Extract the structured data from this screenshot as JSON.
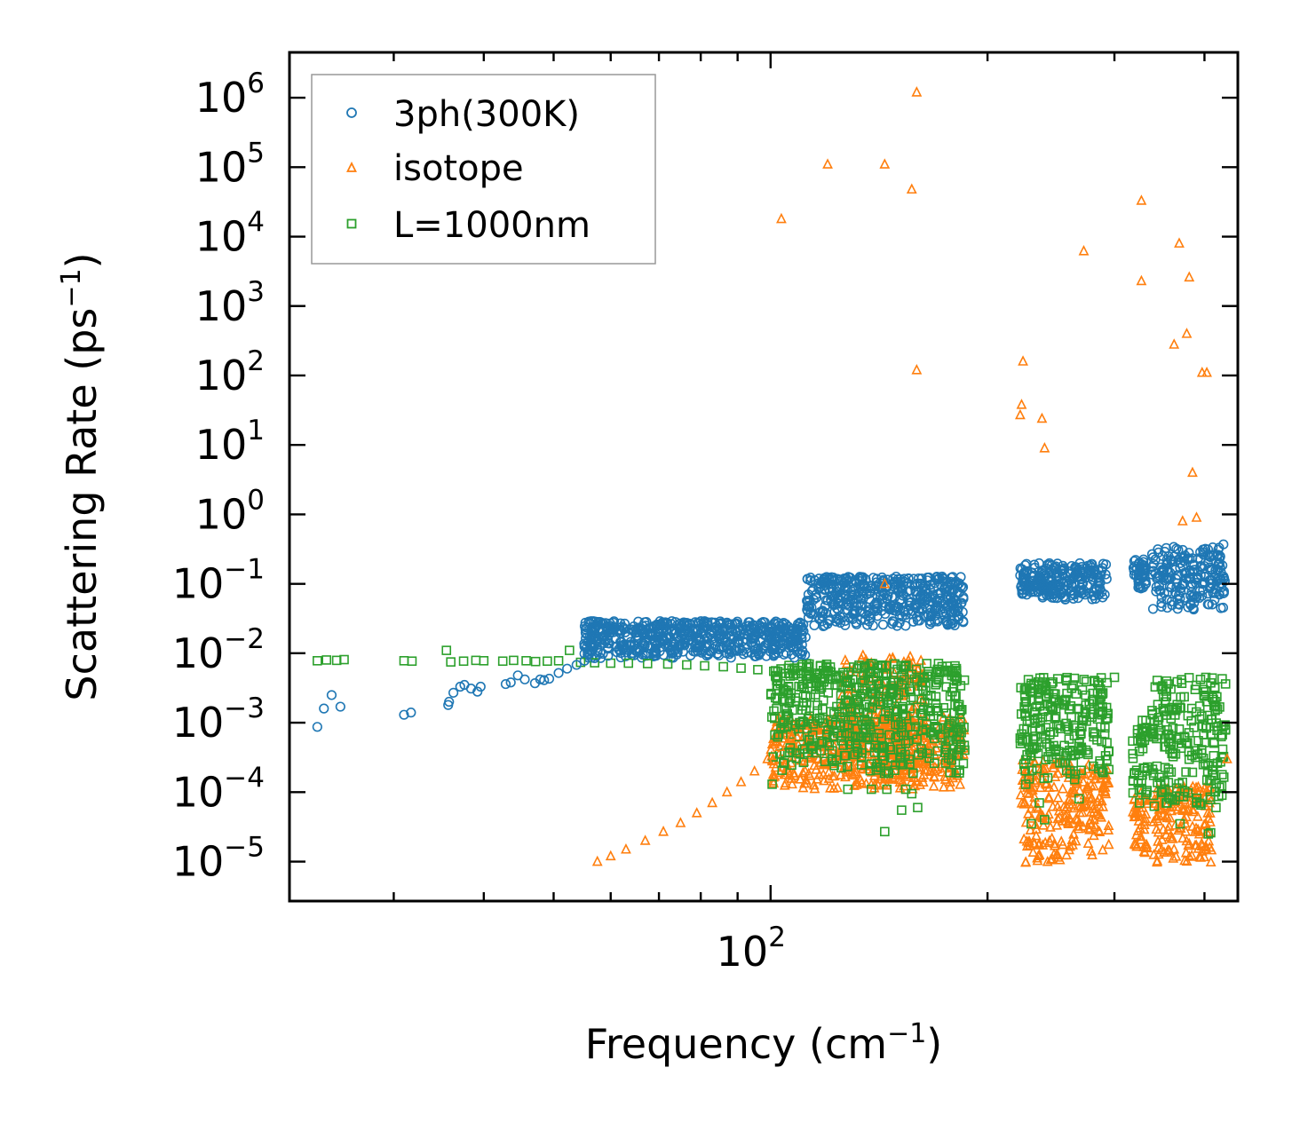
{
  "chart_data": {
    "type": "scatter",
    "xscale": "log",
    "yscale": "log",
    "xlabel": "Frequency (cm",
    "xlabel_sup": "−1",
    "xlabel_end": ")",
    "ylabel": "Scattering Rate (ps",
    "ylabel_sup": "−1",
    "ylabel_end": ")",
    "xlim": [
      21.5,
      445
    ],
    "ylim": [
      2.7e-06,
      4500000
    ],
    "xticks": [
      {
        "value": 100,
        "base": "10",
        "exp": "2"
      }
    ],
    "yticks": [
      {
        "value": 1e-05,
        "base": "10",
        "exp": "−5"
      },
      {
        "value": 0.0001,
        "base": "10",
        "exp": "−4"
      },
      {
        "value": 0.001,
        "base": "10",
        "exp": "−3"
      },
      {
        "value": 0.01,
        "base": "10",
        "exp": "−2"
      },
      {
        "value": 0.1,
        "base": "10",
        "exp": "−1"
      },
      {
        "value": 1,
        "base": "10",
        "exp": "0"
      },
      {
        "value": 10,
        "base": "10",
        "exp": "1"
      },
      {
        "value": 100,
        "base": "10",
        "exp": "2"
      },
      {
        "value": 1000,
        "base": "10",
        "exp": "3"
      },
      {
        "value": 10000,
        "base": "10",
        "exp": "4"
      },
      {
        "value": 100000,
        "base": "10",
        "exp": "5"
      },
      {
        "value": 1000000,
        "base": "10",
        "exp": "6"
      }
    ],
    "legend_position": "top-left",
    "series": [
      {
        "name": "3ph(300K)",
        "marker": "circle",
        "color": "#1f77b4",
        "points": [
          [
            23.5,
            0.00087
          ],
          [
            24.0,
            0.0016
          ],
          [
            24.6,
            0.0025
          ],
          [
            25.3,
            0.0017
          ],
          [
            31.0,
            0.0013
          ],
          [
            31.7,
            0.0014
          ],
          [
            35.7,
            0.0018
          ],
          [
            35.8,
            0.002
          ],
          [
            36.3,
            0.0027
          ],
          [
            37.1,
            0.0033
          ],
          [
            37.6,
            0.0035
          ],
          [
            38.4,
            0.0031
          ],
          [
            39.2,
            0.0028
          ],
          [
            39.6,
            0.0033
          ],
          [
            42.9,
            0.0036
          ],
          [
            43.6,
            0.0038
          ],
          [
            44.6,
            0.0048
          ],
          [
            45.6,
            0.0042
          ],
          [
            47.1,
            0.0037
          ],
          [
            47.9,
            0.0042
          ],
          [
            48.5,
            0.0041
          ],
          [
            49.3,
            0.0043
          ],
          [
            50.8,
            0.0052
          ],
          [
            52.2,
            0.006
          ],
          [
            53.8,
            0.0068
          ],
          [
            55.2,
            0.0078
          ],
          [
            57.0,
            0.0085
          ],
          [
            59.5,
            0.0092
          ],
          [
            62.0,
            0.0101
          ],
          [
            65.0,
            0.0108
          ],
          [
            68.0,
            0.0118
          ],
          [
            72.0,
            0.013
          ],
          [
            76.0,
            0.0145
          ],
          [
            80.0,
            0.0158
          ],
          [
            85.0,
            0.0178
          ],
          [
            90.0,
            0.0198
          ],
          [
            95.0,
            0.022
          ],
          [
            100.0,
            0.0245
          ],
          [
            105.0,
            0.0262
          ],
          [
            110.0,
            0.0268
          ],
          [
            115.0,
            0.0252
          ],
          [
            120.0,
            0.0265
          ],
          [
            125.0,
            0.0275
          ],
          [
            130.0,
            0.031
          ],
          [
            135.0,
            0.037
          ],
          [
            140.0,
            0.047
          ],
          [
            145.0,
            0.062
          ],
          [
            150.0,
            0.081
          ],
          [
            155.0,
            0.102
          ],
          [
            158.0,
            0.118
          ],
          [
            162.0,
            0.085
          ],
          [
            165.0,
            0.072
          ],
          [
            170.0,
            0.055
          ],
          [
            175.0,
            0.039
          ],
          [
            180.0,
            0.031
          ],
          [
            185.0,
            0.029
          ],
          [
            223.0,
            0.095
          ],
          [
            230.0,
            0.11
          ],
          [
            240.0,
            0.13
          ],
          [
            248.0,
            0.1
          ],
          [
            255.0,
            0.082
          ],
          [
            262.0,
            0.092
          ],
          [
            270.0,
            0.15
          ],
          [
            278.0,
            0.13
          ],
          [
            285.0,
            0.16
          ],
          [
            292.0,
            0.19
          ],
          [
            320.0,
            0.18
          ],
          [
            328.0,
            0.13
          ],
          [
            342.0,
            0.14
          ],
          [
            355.0,
            0.2
          ],
          [
            370.0,
            0.17
          ],
          [
            385.0,
            0.15
          ],
          [
            400.0,
            0.18
          ],
          [
            410.0,
            0.26
          ],
          [
            418.0,
            0.31
          ],
          [
            425.0,
            0.37
          ]
        ],
        "bands": [
          {
            "x": [
              55,
              112
            ],
            "y": [
              0.0085,
              0.029
            ]
          },
          {
            "x": [
              112,
              186
            ],
            "y": [
              0.024,
              0.128
            ]
          },
          {
            "x": [
              222,
              293
            ],
            "y": [
              0.058,
              0.2
            ]
          },
          {
            "x": [
              318,
              332
            ],
            "y": [
              0.08,
              0.23
            ]
          },
          {
            "x": [
              338,
              428
            ],
            "y": [
              0.04,
              0.34
            ]
          }
        ]
      },
      {
        "name": "isotope",
        "marker": "triangle",
        "color": "#ff7f0e",
        "points": [
          [
            103.5,
            18000
          ],
          [
            120.0,
            110000
          ],
          [
            144.0,
            110000
          ],
          [
            157.0,
            48000
          ],
          [
            159.5,
            1200000
          ],
          [
            159.5,
            120
          ],
          [
            144.0,
            0.1
          ],
          [
            224.0,
            160
          ],
          [
            223.0,
            38
          ],
          [
            222.0,
            27
          ],
          [
            238.0,
            24
          ],
          [
            240.0,
            9
          ],
          [
            272.0,
            6200
          ],
          [
            327.0,
            33000
          ],
          [
            327.0,
            2300
          ],
          [
            363.0,
            280
          ],
          [
            369.0,
            8000
          ],
          [
            378.0,
            400
          ],
          [
            381.0,
            2600
          ],
          [
            385.0,
            4
          ],
          [
            390.0,
            0.9
          ],
          [
            373.0,
            0.8
          ],
          [
            397.0,
            110
          ],
          [
            403.0,
            110
          ],
          [
            430.0,
            0.0003
          ],
          [
            275.0,
            0.00012
          ],
          [
            281.0,
            4e-05
          ],
          [
            57.5,
            1e-05
          ],
          [
            60.0,
            1.2e-05
          ],
          [
            63.0,
            1.5e-05
          ],
          [
            67.0,
            2e-05
          ],
          [
            71.0,
            2.7e-05
          ],
          [
            75.0,
            3.6e-05
          ],
          [
            79.0,
            5e-05
          ],
          [
            83.0,
            7e-05
          ],
          [
            87.0,
            0.0001
          ],
          [
            91.0,
            0.00014
          ],
          [
            95.0,
            0.0002
          ],
          [
            99.0,
            0.0003
          ],
          [
            103.0,
            0.00045
          ],
          [
            107.0,
            0.00065
          ]
        ],
        "bands": [
          {
            "x": [
              100,
              186
            ],
            "y": [
              0.00011,
              0.0012
            ]
          },
          {
            "x": [
              125,
              163
            ],
            "y": [
              0.00015,
              0.0095
            ]
          },
          {
            "x": [
              222,
              262
            ],
            "y": [
              9.5e-06,
              0.0003
            ]
          },
          {
            "x": [
              262,
              295
            ],
            "y": [
              1.1e-05,
              0.00025
            ]
          },
          {
            "x": [
              318,
              334
            ],
            "y": [
              1.2e-05,
              0.0001
            ]
          },
          {
            "x": [
              340,
              410
            ],
            "y": [
              9.5e-06,
              0.00012
            ]
          }
        ]
      },
      {
        "name": "L=1000nm",
        "marker": "square",
        "color": "#2ca02c",
        "points": [
          [
            23.5,
            0.0078
          ],
          [
            24.2,
            0.008
          ],
          [
            25.0,
            0.0079
          ],
          [
            25.6,
            0.0081
          ],
          [
            31.0,
            0.0078
          ],
          [
            31.8,
            0.0077
          ],
          [
            35.5,
            0.011
          ],
          [
            36.0,
            0.0075
          ],
          [
            37.5,
            0.0077
          ],
          [
            39.0,
            0.0079
          ],
          [
            40.0,
            0.0078
          ],
          [
            42.5,
            0.0077
          ],
          [
            44.0,
            0.0079
          ],
          [
            45.8,
            0.0078
          ],
          [
            47.2,
            0.0076
          ],
          [
            49.0,
            0.0077
          ],
          [
            50.8,
            0.0078
          ],
          [
            52.6,
            0.011
          ],
          [
            54.5,
            0.0074
          ],
          [
            57.0,
            0.0073
          ],
          [
            60.0,
            0.0072
          ],
          [
            63.5,
            0.0072
          ],
          [
            67.5,
            0.0071
          ],
          [
            72.0,
            0.007
          ],
          [
            76.5,
            0.0068
          ],
          [
            81.0,
            0.0066
          ],
          [
            86.0,
            0.0064
          ],
          [
            91.0,
            0.0061
          ],
          [
            96.0,
            0.0058
          ],
          [
            101.0,
            0.0055
          ],
          [
            106.0,
            0.0051
          ],
          [
            112.0,
            0.0048
          ],
          [
            116.0,
            0.0045
          ],
          [
            122.0,
            0.0042
          ],
          [
            128.0,
            0.004
          ],
          [
            134.0,
            0.0038
          ],
          [
            141.0,
            0.0036
          ],
          [
            147.0,
            0.0034
          ],
          [
            100.5,
            0.00013
          ],
          [
            104.5,
            0.00026
          ],
          [
            128.0,
            0.00011
          ],
          [
            132.0,
            0.0021
          ],
          [
            138.0,
            0.00011
          ],
          [
            145.0,
            0.00011
          ],
          [
            152.0,
            5.5e-05
          ],
          [
            154.0,
            0.00011
          ],
          [
            157.0,
            9.5e-05
          ],
          [
            160.0,
            6e-05
          ],
          [
            144.0,
            2.7e-05
          ],
          [
            150.0,
            0.0012
          ],
          [
            156.0,
            0.0016
          ],
          [
            222.0,
            0.0006
          ],
          [
            226.0,
            0.00013
          ],
          [
            230.0,
            3.5e-05
          ],
          [
            236.0,
            7e-05
          ],
          [
            240.0,
            4e-05
          ],
          [
            260.0,
            0.0004
          ],
          [
            268.0,
            8e-05
          ],
          [
            288.0,
            0.0013
          ],
          [
            325.0,
            7e-05
          ],
          [
            340.0,
            9e-05
          ],
          [
            355.0,
            7e-05
          ],
          [
            370.0,
            3.5e-05
          ],
          [
            390.0,
            7e-05
          ],
          [
            405.0,
            2.5e-05
          ],
          [
            408.0,
            2.6e-05
          ],
          [
            415.0,
            6e-05
          ],
          [
            428.0,
            0.0008
          ],
          [
            300.0,
            0.0045
          ],
          [
            395.0,
            0.0042
          ],
          [
            410.0,
            0.0044
          ]
        ],
        "bands": [
          {
            "x": [
              100,
              186
            ],
            "y": [
              0.00018,
              0.0072
            ]
          },
          {
            "x": [
              222,
              295
            ],
            "y": [
              0.00015,
              0.0045
            ]
          },
          {
            "x": [
              318,
              334
            ],
            "y": [
              8e-05,
              0.0012
            ]
          },
          {
            "x": [
              338,
              428
            ],
            "y": [
              6e-05,
              0.0045
            ]
          }
        ]
      }
    ]
  }
}
